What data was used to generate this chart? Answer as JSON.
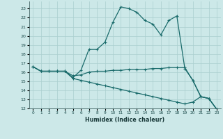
{
  "xlabel": "Humidex (Indice chaleur)",
  "bg_color": "#cce8e8",
  "grid_color": "#aacfcf",
  "line_color": "#1a6b6b",
  "xlim": [
    -0.5,
    23.5
  ],
  "ylim": [
    12,
    23.8
  ],
  "yticks": [
    12,
    13,
    14,
    15,
    16,
    17,
    18,
    19,
    20,
    21,
    22,
    23
  ],
  "xticks": [
    0,
    1,
    2,
    3,
    4,
    5,
    6,
    7,
    8,
    9,
    10,
    11,
    12,
    13,
    14,
    15,
    16,
    17,
    18,
    19,
    20,
    21,
    22,
    23
  ],
  "line1_x": [
    0,
    1,
    2,
    3,
    4,
    5,
    6,
    7,
    8,
    9,
    10,
    11,
    12,
    13,
    14,
    15,
    16,
    17,
    18,
    19,
    20,
    21,
    22,
    23
  ],
  "line1_y": [
    16.6,
    16.1,
    16.1,
    16.1,
    16.1,
    15.4,
    16.2,
    18.5,
    18.5,
    19.3,
    21.5,
    23.2,
    23.0,
    22.6,
    21.7,
    21.3,
    20.1,
    21.7,
    22.2,
    16.4,
    15.1,
    13.3,
    13.1,
    11.9
  ],
  "line2_x": [
    0,
    1,
    2,
    3,
    4,
    5,
    6,
    7,
    8,
    9,
    10,
    11,
    12,
    13,
    14,
    15,
    16,
    17,
    18,
    19,
    20,
    21,
    22,
    23
  ],
  "line2_y": [
    16.6,
    16.1,
    16.1,
    16.1,
    16.1,
    15.6,
    15.7,
    16.0,
    16.1,
    16.1,
    16.2,
    16.2,
    16.3,
    16.3,
    16.3,
    16.4,
    16.4,
    16.5,
    16.5,
    16.5,
    15.1,
    13.3,
    13.1,
    11.9
  ],
  "line3_x": [
    0,
    1,
    2,
    3,
    4,
    5,
    6,
    7,
    8,
    9,
    10,
    11,
    12,
    13,
    14,
    15,
    16,
    17,
    18,
    19,
    20,
    21,
    22,
    23
  ],
  "line3_y": [
    16.6,
    16.1,
    16.1,
    16.1,
    16.1,
    15.3,
    15.1,
    14.9,
    14.7,
    14.5,
    14.3,
    14.1,
    13.9,
    13.7,
    13.5,
    13.3,
    13.1,
    12.9,
    12.7,
    12.5,
    12.7,
    13.3,
    13.1,
    11.9
  ]
}
